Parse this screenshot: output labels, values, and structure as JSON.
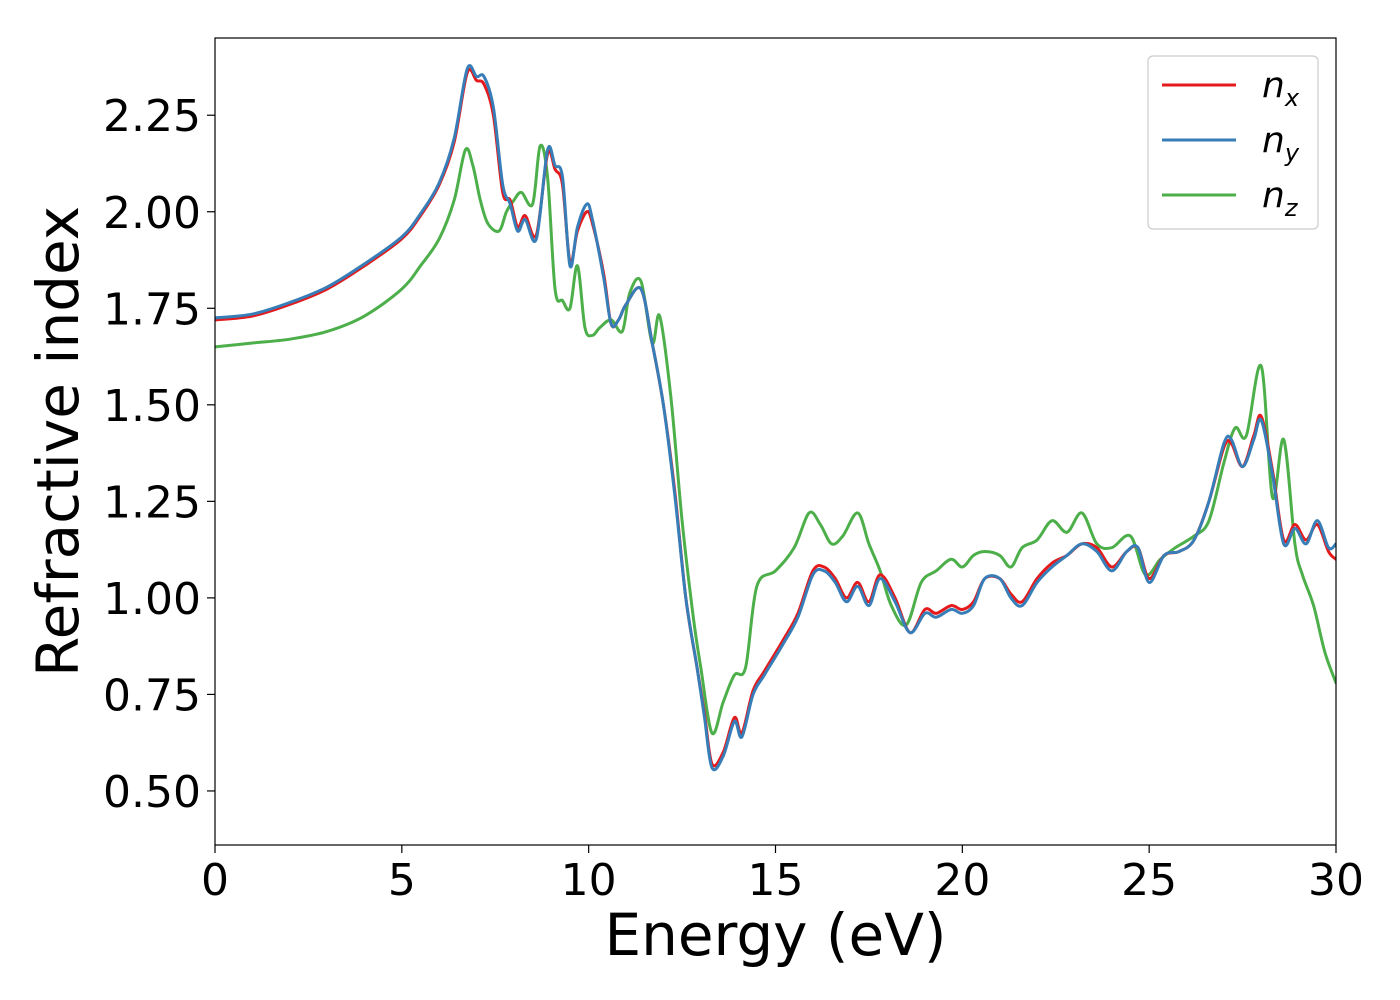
{
  "chart_data": {
    "type": "line",
    "xlabel": "Energy (eV)",
    "ylabel": "Refractive index",
    "xlim": [
      0,
      30
    ],
    "ylim": [
      0.36,
      2.45
    ],
    "xticks": [
      0,
      5,
      10,
      15,
      20,
      25,
      30
    ],
    "xtick_labels": [
      "0",
      "5",
      "10",
      "15",
      "20",
      "25",
      "30"
    ],
    "yticks": [
      0.5,
      0.75,
      1.0,
      1.25,
      1.5,
      1.75,
      2.0,
      2.25
    ],
    "ytick_labels": [
      "0.50",
      "0.75",
      "1.00",
      "1.25",
      "1.50",
      "1.75",
      "2.00",
      "2.25"
    ],
    "grid": false,
    "legend_position": "top-right",
    "series": [
      {
        "name": "n_x",
        "legend_base": "n",
        "legend_sub": "x",
        "color": "#e41a1c",
        "x": [
          0,
          1,
          2,
          3,
          4,
          5,
          5.5,
          6,
          6.4,
          6.75,
          7.0,
          7.2,
          7.45,
          7.7,
          7.9,
          8.1,
          8.3,
          8.6,
          8.9,
          9.1,
          9.3,
          9.5,
          9.7,
          9.95,
          10.1,
          10.4,
          10.6,
          10.8,
          11.0,
          11.4,
          11.7,
          12.0,
          12.3,
          12.6,
          12.9,
          13.1,
          13.3,
          13.6,
          13.9,
          14.1,
          14.4,
          14.7,
          15.2,
          15.6,
          16.0,
          16.3,
          16.6,
          16.9,
          17.2,
          17.5,
          17.8,
          18.2,
          18.6,
          19.0,
          19.3,
          19.7,
          20.0,
          20.3,
          20.6,
          21.0,
          21.3,
          21.6,
          22.0,
          22.4,
          22.8,
          23.2,
          23.6,
          24.0,
          24.4,
          24.7,
          25.0,
          25.4,
          25.8,
          26.2,
          26.6,
          27.0,
          27.2,
          27.5,
          27.8,
          28.0,
          28.3,
          28.6,
          28.9,
          29.2,
          29.5,
          29.8,
          30.0
        ],
        "y": [
          1.72,
          1.73,
          1.76,
          1.8,
          1.86,
          1.93,
          1.99,
          2.07,
          2.18,
          2.36,
          2.34,
          2.33,
          2.25,
          2.05,
          2.03,
          1.96,
          1.99,
          1.94,
          2.15,
          2.11,
          2.07,
          1.87,
          1.95,
          2.0,
          1.97,
          1.84,
          1.71,
          1.72,
          1.76,
          1.8,
          1.66,
          1.5,
          1.28,
          1.0,
          0.82,
          0.7,
          0.57,
          0.6,
          0.69,
          0.65,
          0.76,
          0.81,
          0.89,
          0.96,
          1.07,
          1.08,
          1.05,
          1.0,
          1.04,
          0.99,
          1.06,
          1.0,
          0.91,
          0.97,
          0.96,
          0.98,
          0.97,
          0.99,
          1.05,
          1.05,
          1.01,
          0.99,
          1.05,
          1.09,
          1.11,
          1.14,
          1.13,
          1.08,
          1.12,
          1.13,
          1.05,
          1.11,
          1.12,
          1.15,
          1.25,
          1.39,
          1.4,
          1.34,
          1.42,
          1.47,
          1.33,
          1.15,
          1.19,
          1.15,
          1.19,
          1.12,
          1.1
        ]
      },
      {
        "name": "n_y",
        "legend_base": "n",
        "legend_sub": "y",
        "color": "#377eb8",
        "x": [
          0,
          1,
          2,
          3,
          4,
          5,
          5.5,
          6,
          6.4,
          6.75,
          7.0,
          7.2,
          7.45,
          7.7,
          7.9,
          8.1,
          8.3,
          8.6,
          8.9,
          9.1,
          9.3,
          9.5,
          9.7,
          9.95,
          10.1,
          10.4,
          10.6,
          10.8,
          11.0,
          11.4,
          11.7,
          12.0,
          12.3,
          12.6,
          12.9,
          13.1,
          13.3,
          13.6,
          13.9,
          14.1,
          14.4,
          14.7,
          15.2,
          15.6,
          16.0,
          16.3,
          16.6,
          16.9,
          17.2,
          17.5,
          17.8,
          18.2,
          18.6,
          19.0,
          19.3,
          19.7,
          20.0,
          20.3,
          20.6,
          21.0,
          21.3,
          21.6,
          22.0,
          22.4,
          22.8,
          23.2,
          23.6,
          24.0,
          24.4,
          24.7,
          25.0,
          25.4,
          25.8,
          26.2,
          26.6,
          27.0,
          27.2,
          27.5,
          27.8,
          28.0,
          28.3,
          28.6,
          28.9,
          29.2,
          29.5,
          29.8,
          30.0
        ],
        "y": [
          1.725,
          1.735,
          1.765,
          1.805,
          1.865,
          1.935,
          1.995,
          2.075,
          2.19,
          2.37,
          2.35,
          2.35,
          2.27,
          2.07,
          2.02,
          1.95,
          1.98,
          1.93,
          2.16,
          2.12,
          2.09,
          1.86,
          1.96,
          2.02,
          1.98,
          1.83,
          1.71,
          1.72,
          1.76,
          1.8,
          1.66,
          1.5,
          1.27,
          1.0,
          0.82,
          0.69,
          0.56,
          0.59,
          0.68,
          0.64,
          0.75,
          0.8,
          0.88,
          0.95,
          1.06,
          1.07,
          1.04,
          0.99,
          1.03,
          0.98,
          1.05,
          0.99,
          0.91,
          0.96,
          0.95,
          0.97,
          0.96,
          0.98,
          1.05,
          1.05,
          1.0,
          0.98,
          1.04,
          1.08,
          1.11,
          1.14,
          1.12,
          1.07,
          1.12,
          1.13,
          1.04,
          1.11,
          1.12,
          1.15,
          1.25,
          1.4,
          1.41,
          1.34,
          1.41,
          1.46,
          1.32,
          1.14,
          1.18,
          1.14,
          1.2,
          1.13,
          1.14
        ]
      },
      {
        "name": "n_z",
        "legend_base": "n",
        "legend_sub": "z",
        "color": "#4daf4a",
        "x": [
          0,
          1,
          2,
          3,
          4,
          5,
          5.5,
          6,
          6.4,
          6.7,
          6.9,
          7.1,
          7.3,
          7.6,
          7.8,
          8.0,
          8.2,
          8.5,
          8.7,
          8.9,
          9.1,
          9.3,
          9.5,
          9.7,
          9.9,
          10.1,
          10.3,
          10.6,
          10.9,
          11.1,
          11.4,
          11.7,
          11.9,
          12.2,
          12.5,
          12.8,
          13.0,
          13.3,
          13.6,
          13.9,
          14.2,
          14.5,
          15.0,
          15.5,
          15.9,
          16.2,
          16.5,
          16.8,
          17.2,
          17.5,
          17.8,
          18.1,
          18.5,
          18.9,
          19.3,
          19.7,
          20.0,
          20.3,
          20.6,
          21.0,
          21.3,
          21.6,
          22.0,
          22.4,
          22.8,
          23.2,
          23.6,
          24.0,
          24.5,
          24.9,
          25.3,
          25.7,
          26.2,
          26.6,
          27.0,
          27.3,
          27.6,
          28.0,
          28.3,
          28.6,
          28.9,
          29.1,
          29.4,
          29.7,
          30.0
        ],
        "y": [
          1.65,
          1.66,
          1.67,
          1.69,
          1.73,
          1.8,
          1.86,
          1.93,
          2.03,
          2.16,
          2.12,
          2.03,
          1.97,
          1.95,
          2.0,
          2.03,
          2.05,
          2.02,
          2.17,
          2.09,
          1.8,
          1.77,
          1.75,
          1.86,
          1.7,
          1.68,
          1.7,
          1.72,
          1.69,
          1.79,
          1.82,
          1.66,
          1.73,
          1.52,
          1.2,
          0.95,
          0.82,
          0.65,
          0.73,
          0.8,
          0.82,
          1.03,
          1.07,
          1.13,
          1.22,
          1.19,
          1.14,
          1.16,
          1.22,
          1.14,
          1.07,
          0.98,
          0.93,
          1.04,
          1.07,
          1.1,
          1.08,
          1.11,
          1.12,
          1.11,
          1.08,
          1.13,
          1.15,
          1.2,
          1.17,
          1.22,
          1.14,
          1.13,
          1.16,
          1.06,
          1.1,
          1.13,
          1.16,
          1.2,
          1.35,
          1.44,
          1.42,
          1.6,
          1.26,
          1.41,
          1.14,
          1.06,
          0.98,
          0.86,
          0.78
        ]
      }
    ]
  }
}
